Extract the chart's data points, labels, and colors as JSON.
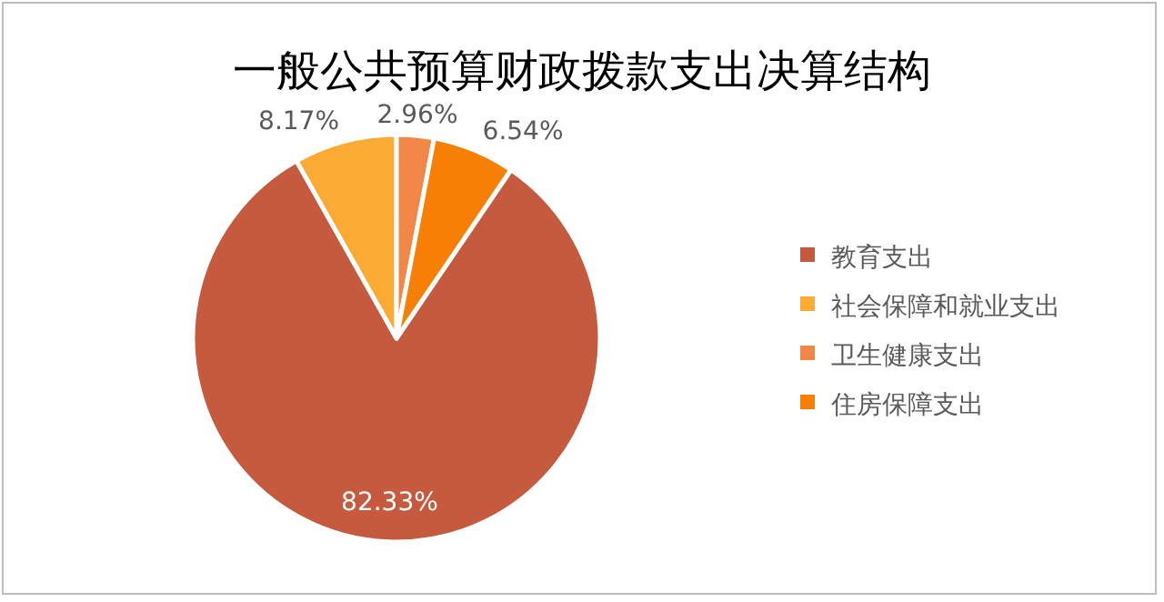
{
  "chart_data": {
    "type": "pie",
    "title": "一般公共预算财政拨款支出决算结构",
    "categories": [
      "教育支出",
      "社会保障和就业支出",
      "卫生健康支出",
      "住房保障支出"
    ],
    "values": [
      82.33,
      8.17,
      2.96,
      6.54
    ],
    "colors": [
      "#c65a3e",
      "#fbab33",
      "#f28646",
      "#f77f06"
    ],
    "value_labels": [
      "82.33%",
      "8.17%",
      "2.96%",
      "6.54%"
    ],
    "legend": "right"
  }
}
